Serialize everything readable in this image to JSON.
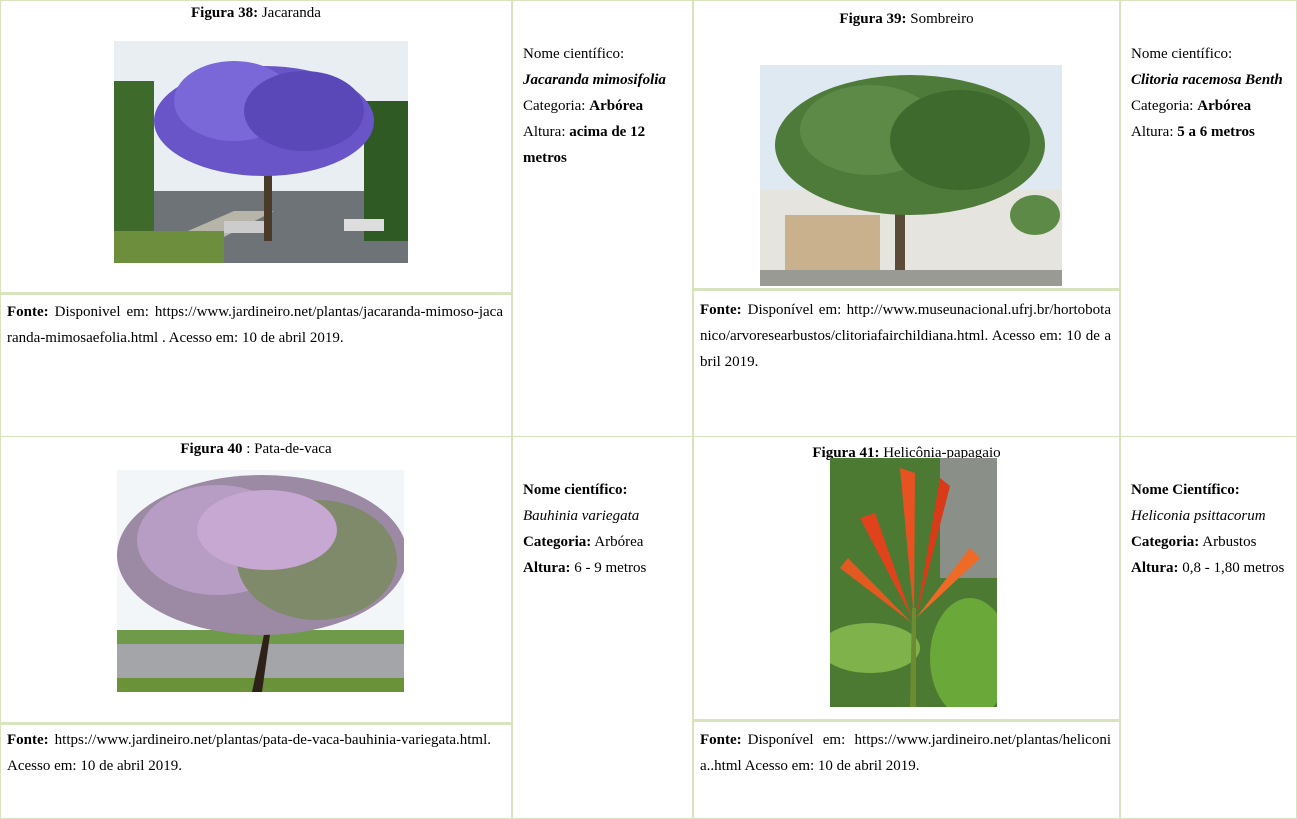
{
  "figures": [
    {
      "label": "Figura 38:",
      "caption": "Jacaranda",
      "source_label": "Fonte:",
      "source": "Disponivel em: https://www.jardineiro.net/plantas/jacaranda-mimoso-jacaranda-mimosaefolia.html . Acesso em: 10 de abril 2019.",
      "info": [
        {
          "label": "Nome científico:",
          "value": "Jacaranda mimosifolia"
        },
        {
          "label": "Categoria:",
          "value": "Arbórea"
        },
        {
          "label": "Altura:",
          "value": "acima de 12 metros"
        }
      ]
    },
    {
      "label": "Figura 39:",
      "caption": "Sombreiro",
      "source_label": "Fonte:",
      "source": "Disponível em: http://www.museunacional.ufrj.br/hortobotanico/arvoresearbustos/clitoriafairchildiana.html. Acesso em: 10 de abril 2019.",
      "info": [
        {
          "label": "Nome científico:",
          "value": "Clitoria racemosa Benth"
        },
        {
          "label": "Categoria:",
          "value": "Arbórea"
        },
        {
          "label": "Altura:",
          "value": "5 a 6 metros"
        }
      ]
    },
    {
      "label": "Figura 40",
      "caption": ": Pata-de-vaca",
      "source_label": "Fonte:",
      "source": "https://www.jardineiro.net/plantas/pata-de-vaca-bauhinia-variegata.html. Acesso em: 10 de abril 2019.",
      "info": [
        {
          "label": "Nome científico:",
          "value": "Bauhinia variegata"
        },
        {
          "label": "Categoria:",
          "value": "Arbórea"
        },
        {
          "label": "Altura:",
          "value": "6 - 9 metros"
        }
      ]
    },
    {
      "label": "Figura 41:",
      "caption": "Helicônia-papagaio",
      "source_label": "Fonte:",
      "source": "Disponível em: https://www.jardineiro.net/plantas/heliconia..html Acesso em: 10 de abril 2019.",
      "info": [
        {
          "label": "Nome Científico:",
          "value": "Heliconia psittacorum"
        },
        {
          "label": "Categoria:",
          "value": "Arbustos"
        },
        {
          "label": "Altura:",
          "value": "0,8 - 1,80 metros"
        }
      ]
    }
  ]
}
